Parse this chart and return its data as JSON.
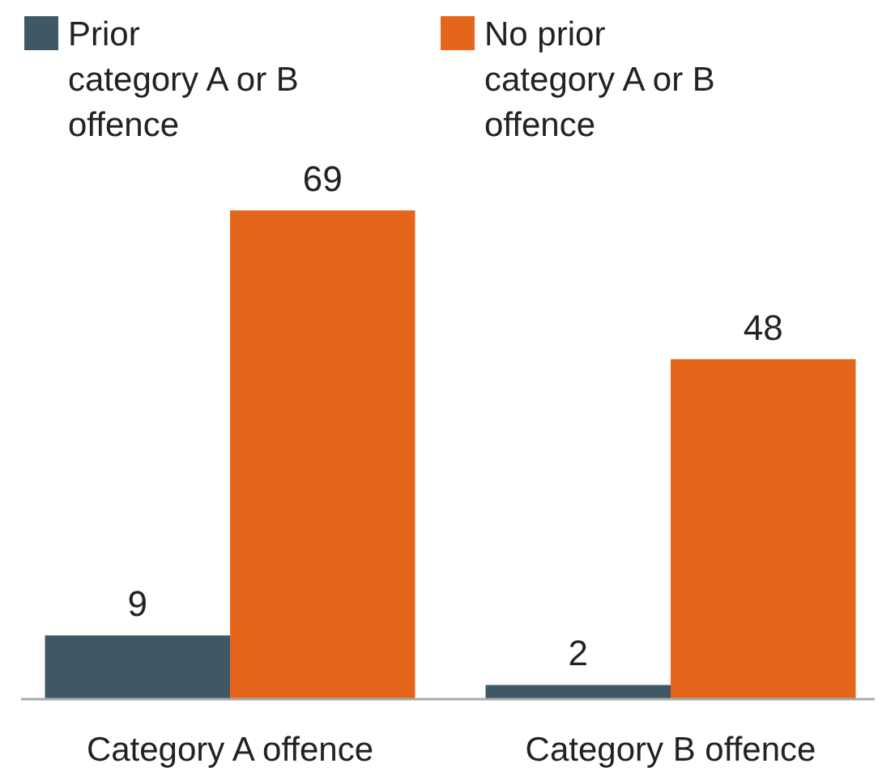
{
  "chart_data": {
    "type": "bar",
    "categories": [
      "Category A offence",
      "Category B offence"
    ],
    "series": [
      {
        "name": "Prior category A or B offence",
        "color": "#3f5866",
        "values": [
          9,
          2
        ]
      },
      {
        "name": "No prior category A or B offence",
        "color": "#e5661b",
        "values": [
          69,
          48
        ]
      }
    ],
    "data_labels": true,
    "legend": "top",
    "grid": false
  }
}
